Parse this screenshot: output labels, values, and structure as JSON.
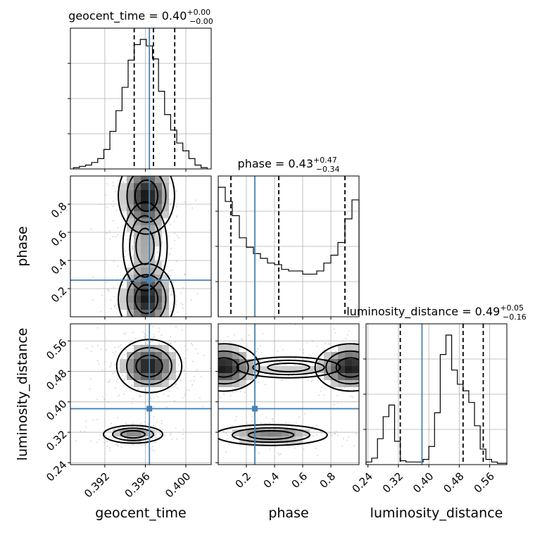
{
  "chart_data": {
    "type": "corner",
    "parameters": [
      "geocent_time",
      "phase",
      "luminosity_distance"
    ],
    "injection": {
      "geocent_time": 0.3964,
      "phase": 0.26,
      "luminosity_distance": 0.382
    },
    "panels": [
      {
        "type": "histogram",
        "parameter": "geocent_time",
        "title": {
          "name": "geocent_time",
          "value": "0.40",
          "plus": "+0.00",
          "minus": "−0.00"
        },
        "x_range": [
          0.3886,
          0.4025
        ],
        "bins": [
          0.3889,
          0.3895,
          0.3901,
          0.3907,
          0.3913,
          0.3919,
          0.3925,
          0.3931,
          0.3937,
          0.3943,
          0.3949,
          0.3955,
          0.3961,
          0.3967,
          0.3973,
          0.3979,
          0.3985,
          0.3991,
          0.3997,
          0.4003,
          0.4009,
          0.4015,
          0.4021
        ],
        "counts": [
          0.01,
          0.02,
          0.03,
          0.05,
          0.08,
          0.15,
          0.29,
          0.45,
          0.63,
          0.84,
          0.96,
          1.0,
          0.95,
          0.85,
          0.6,
          0.42,
          0.3,
          0.2,
          0.14,
          0.08,
          0.03,
          0.01
        ],
        "quantiles": [
          0.3949,
          0.3968,
          0.3989
        ],
        "ticks": [
          0.392,
          0.396,
          0.4
        ],
        "tick_labels": [
          "0.392",
          "0.396",
          "0.400"
        ],
        "xlabel": "geocent_time"
      },
      {
        "type": "histogram",
        "parameter": "phase",
        "title": {
          "name": "phase",
          "value": "0.43",
          "plus": "+0.47",
          "minus": "−0.34"
        },
        "x_range": [
          0.0,
          1.0
        ],
        "bins": [
          0.0,
          0.05,
          0.1,
          0.15,
          0.2,
          0.25,
          0.3,
          0.35,
          0.4,
          0.45,
          0.5,
          0.55,
          0.6,
          0.65,
          0.7,
          0.75,
          0.8,
          0.85,
          0.9,
          0.95,
          1.0
        ],
        "counts": [
          0.82,
          0.73,
          0.64,
          0.5,
          0.44,
          0.4,
          0.37,
          0.34,
          0.33,
          0.3,
          0.29,
          0.29,
          0.27,
          0.27,
          0.29,
          0.34,
          0.39,
          0.47,
          0.62,
          0.74
        ],
        "quantiles": [
          0.09,
          0.43,
          0.9
        ],
        "ticks": [
          0.2,
          0.4,
          0.6,
          0.8
        ],
        "tick_labels": [
          "0.2",
          "0.4",
          "0.6",
          "0.8"
        ],
        "xlabel": "phase"
      },
      {
        "type": "histogram",
        "parameter": "luminosity_distance",
        "title": {
          "name": "luminosity_distance",
          "value": "0.49",
          "plus": "+0.05",
          "minus": "−0.16"
        },
        "x_range": [
          0.235,
          0.605
        ],
        "bins": [
          0.235,
          0.25,
          0.265,
          0.28,
          0.295,
          0.31,
          0.325,
          0.34,
          0.355,
          0.37,
          0.385,
          0.4,
          0.415,
          0.43,
          0.445,
          0.46,
          0.475,
          0.49,
          0.505,
          0.52,
          0.535,
          0.55,
          0.565,
          0.58,
          0.595,
          0.605
        ],
        "counts": [
          0.02,
          0.05,
          0.2,
          0.37,
          0.46,
          0.18,
          0.03,
          0.02,
          0.02,
          0.02,
          0.04,
          0.14,
          0.4,
          0.85,
          1.0,
          0.73,
          0.62,
          0.57,
          0.48,
          0.3,
          0.12,
          0.04,
          0.02,
          0.01,
          0.01
        ],
        "quantiles": [
          0.325,
          0.49,
          0.543
        ],
        "ticks": [
          0.24,
          0.32,
          0.4,
          0.48,
          0.56
        ],
        "tick_labels": [
          "0.24",
          "0.32",
          "0.40",
          "0.48",
          "0.56"
        ],
        "xlabel": "luminosity_distance"
      },
      {
        "type": "density",
        "x": "geocent_time",
        "y": "phase",
        "y_ticks": [
          0.2,
          0.4,
          0.6,
          0.8
        ],
        "y_tick_labels": [
          "0.2",
          "0.4",
          "0.6",
          "0.8"
        ],
        "ylabel": "phase"
      },
      {
        "type": "density",
        "x": "geocent_time",
        "y": "luminosity_distance",
        "y_ticks": [
          0.24,
          0.32,
          0.4,
          0.48,
          0.56
        ],
        "y_tick_labels": [
          "0.24",
          "0.32",
          "0.40",
          "0.48",
          "0.56"
        ],
        "ylabel": "luminosity_distance"
      },
      {
        "type": "density",
        "x": "phase",
        "y": "luminosity_distance"
      }
    ],
    "grid": true,
    "colors": {
      "truth": "#4682b4",
      "line": "#000000",
      "grid": "#b0b0b0"
    }
  }
}
